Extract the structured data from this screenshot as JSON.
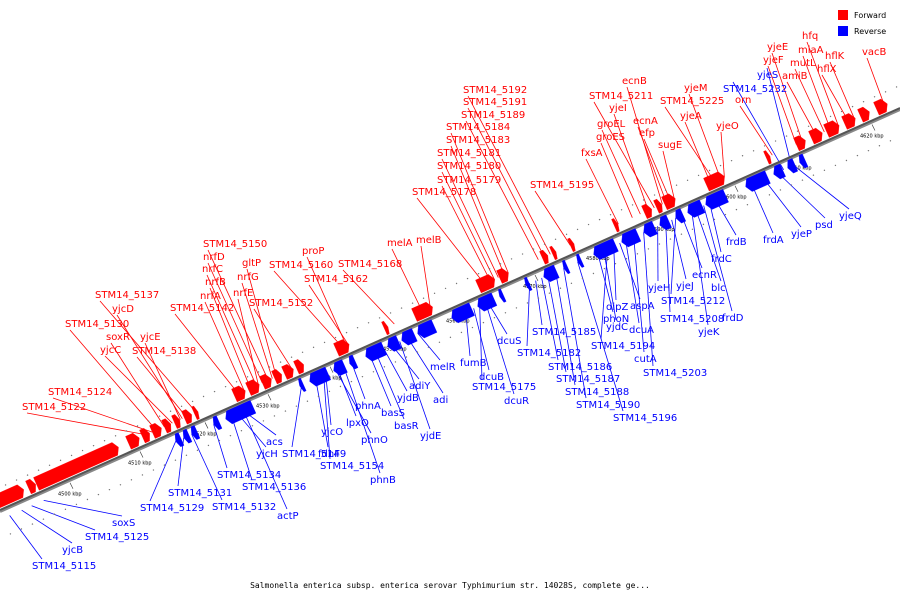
{
  "caption": "Salmonella enterica subsp. enterica serovar Typhimurium str. 14028S, complete ge...",
  "legend": [
    {
      "label": "Forward",
      "color": "#ff0000"
    },
    {
      "label": "Reverse",
      "color": "#0000ff"
    }
  ],
  "colors": {
    "forward": "#ff0000",
    "reverse": "#0000ff",
    "backbone": "#555555"
  },
  "axis_ticks": [
    "4500 kbp",
    "4510 kbp",
    "4520 kbp",
    "4530 kbp",
    "4540 kbp",
    "4550 kbp",
    "4560 kbp",
    "4570 kbp",
    "4580 kbp",
    "4590 kbp",
    "4600 kbp",
    "4610 kbp",
    "4620 kbp"
  ],
  "forward_genes": [
    "STM14_5122",
    "STM14_5124",
    "yjcC",
    "soxR",
    "STM14_5130",
    "yjcD",
    "STM14_5137",
    "yjcE",
    "STM14_5138",
    "STM14_5142",
    "nrfA",
    "nrfE",
    "nrfB",
    "nrfC",
    "nrfD",
    "STM14_5150",
    "gltP",
    "nrfG",
    "STM14_5152",
    "STM14_5160",
    "proP",
    "STM14_5162",
    "STM14_5168",
    "melA",
    "melB",
    "STM14_5178",
    "STM14_5179",
    "STM14_5180",
    "STM14_5181",
    "STM14_5183",
    "STM14_5184",
    "STM14_5189",
    "STM14_5191",
    "STM14_5192",
    "STM14_5195",
    "fxsA",
    "groES",
    "groEL",
    "yjeI",
    "STM14_5211",
    "ecnB",
    "ecnA",
    "efp",
    "sugE",
    "yjeA",
    "STM14_5225",
    "yjeM",
    "yjeO",
    "orn",
    "yjeF",
    "yjeE",
    "amiB",
    "mutL",
    "miaA",
    "hfq",
    "hflX",
    "hflK",
    "vacB"
  ],
  "reverse_genes": [
    "STM14_5115",
    "yjcB",
    "STM14_5125",
    "soxS",
    "STM14_5129",
    "STM14_5131",
    "STM14_5132",
    "actP",
    "STM14_5134",
    "STM14_5136",
    "yjcH",
    "acs",
    "STM14_5149",
    "fdhF",
    "STM14_5154",
    "yjcO",
    "phnO",
    "lpxO",
    "phnB",
    "phnA",
    "basS",
    "basR",
    "yjdB",
    "adiY",
    "yjdE",
    "adi",
    "melR",
    "fumB",
    "dcuB",
    "STM14_5175",
    "dcuR",
    "dcuS",
    "STM14_5185",
    "STM14_5182",
    "STM14_5186",
    "STM14_5187",
    "STM14_5188",
    "STM14_5190",
    "STM14_5196",
    "phoN",
    "yjdC",
    "STM14_5194",
    "dipZ",
    "aspA",
    "dcuA",
    "cutA",
    "STM14_5203",
    "yjeH",
    "STM14_5208",
    "yjeJ",
    "STM14_5212",
    "ecnR",
    "yjeK",
    "blc",
    "frdD",
    "frdC",
    "frdB",
    "frdA",
    "yjeP",
    "psd",
    "yjeQ",
    "STM14_5232",
    "yjeS"
  ]
}
